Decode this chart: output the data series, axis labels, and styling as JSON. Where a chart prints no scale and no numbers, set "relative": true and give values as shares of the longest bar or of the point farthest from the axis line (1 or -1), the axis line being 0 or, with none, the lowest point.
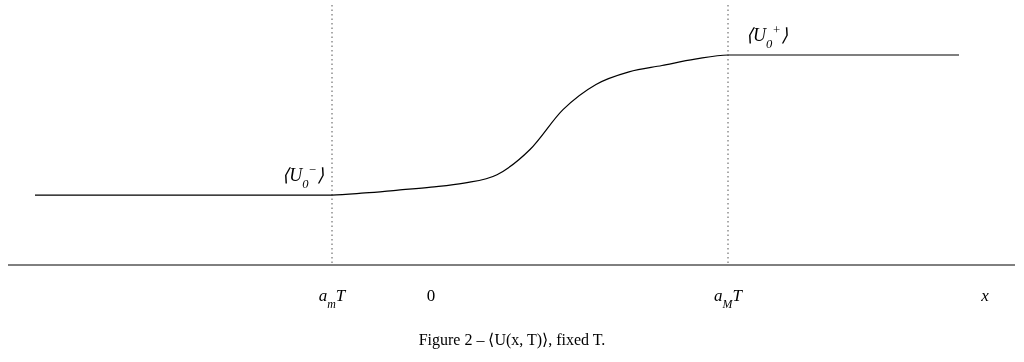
{
  "chart_data": {
    "type": "line",
    "relative": true,
    "color": "#000000",
    "line_style": "solid",
    "tick_labels": "x",
    "categories": [
      null,
      null,
      null,
      null,
      null,
      null,
      null,
      null,
      null,
      "a$_{m}$T",
      null,
      null,
      "0",
      null,
      null,
      null,
      null,
      null,
      null,
      null,
      null,
      "a$_{M}$T",
      null,
      null,
      null,
      null,
      null,
      null,
      null
    ],
    "values": [
      0.333,
      0.333,
      0.333,
      0.333,
      0.333,
      0.333,
      0.333,
      0.333,
      0.333,
      0.333,
      0.343,
      0.357,
      0.371,
      0.39,
      0.43,
      0.55,
      0.74,
      0.86,
      0.92,
      0.95,
      0.98,
      1,
      1,
      1,
      1,
      1,
      1,
      1,
      1
    ],
    "xlabel": "x",
    "ref_lines": [
      {
        "axis": "x",
        "value": "a$_{m}$T",
        "line_style": "dotted"
      },
      {
        "axis": "x",
        "value": "a$_{M}$T",
        "line_style": "dotted"
      }
    ],
    "annotations": [
      {
        "text": "⟨U$_{0}$$^{−}$⟩",
        "x": "a$_{m}$T",
        "y": 0.333
      },
      {
        "text": "⟨U$_{0}$$^{+}$⟩",
        "x": "a$_{M}$T",
        "y": 1
      },
      "Figure 2 – ⟨U(x, T)⟩, fixed T."
    ]
  }
}
